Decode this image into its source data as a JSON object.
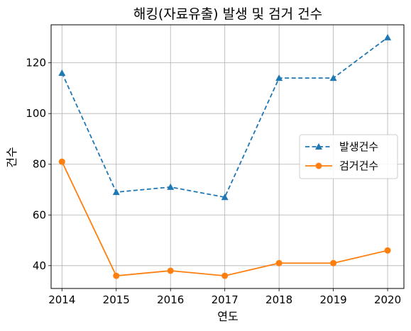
{
  "chart_data": {
    "type": "line",
    "title": "해킹(자료유출) 발생 및 검거 건수",
    "xlabel": "연도",
    "ylabel": "건수",
    "x": [
      2014,
      2015,
      2016,
      2017,
      2018,
      2019,
      2020
    ],
    "x_tick_labels": [
      "2014",
      "2015",
      "2016",
      "2017",
      "2018",
      "2019",
      "2020"
    ],
    "y_ticks": [
      40,
      60,
      80,
      100,
      120
    ],
    "y_tick_labels": [
      "40",
      "60",
      "80",
      "100",
      "120"
    ],
    "ylim": [
      31,
      135
    ],
    "xlim": [
      2013.8,
      2020.3
    ],
    "grid": true,
    "legend_position": "center-right",
    "series": [
      {
        "name": "발생건수",
        "values": [
          116,
          69,
          71,
          67,
          114,
          114,
          130
        ],
        "color": "#1f77b4",
        "line_style": "dashed",
        "marker": "triangle"
      },
      {
        "name": "검거건수",
        "values": [
          81,
          36,
          38,
          36,
          41,
          41,
          46
        ],
        "color": "#ff7f0e",
        "line_style": "solid",
        "marker": "circle"
      }
    ]
  }
}
